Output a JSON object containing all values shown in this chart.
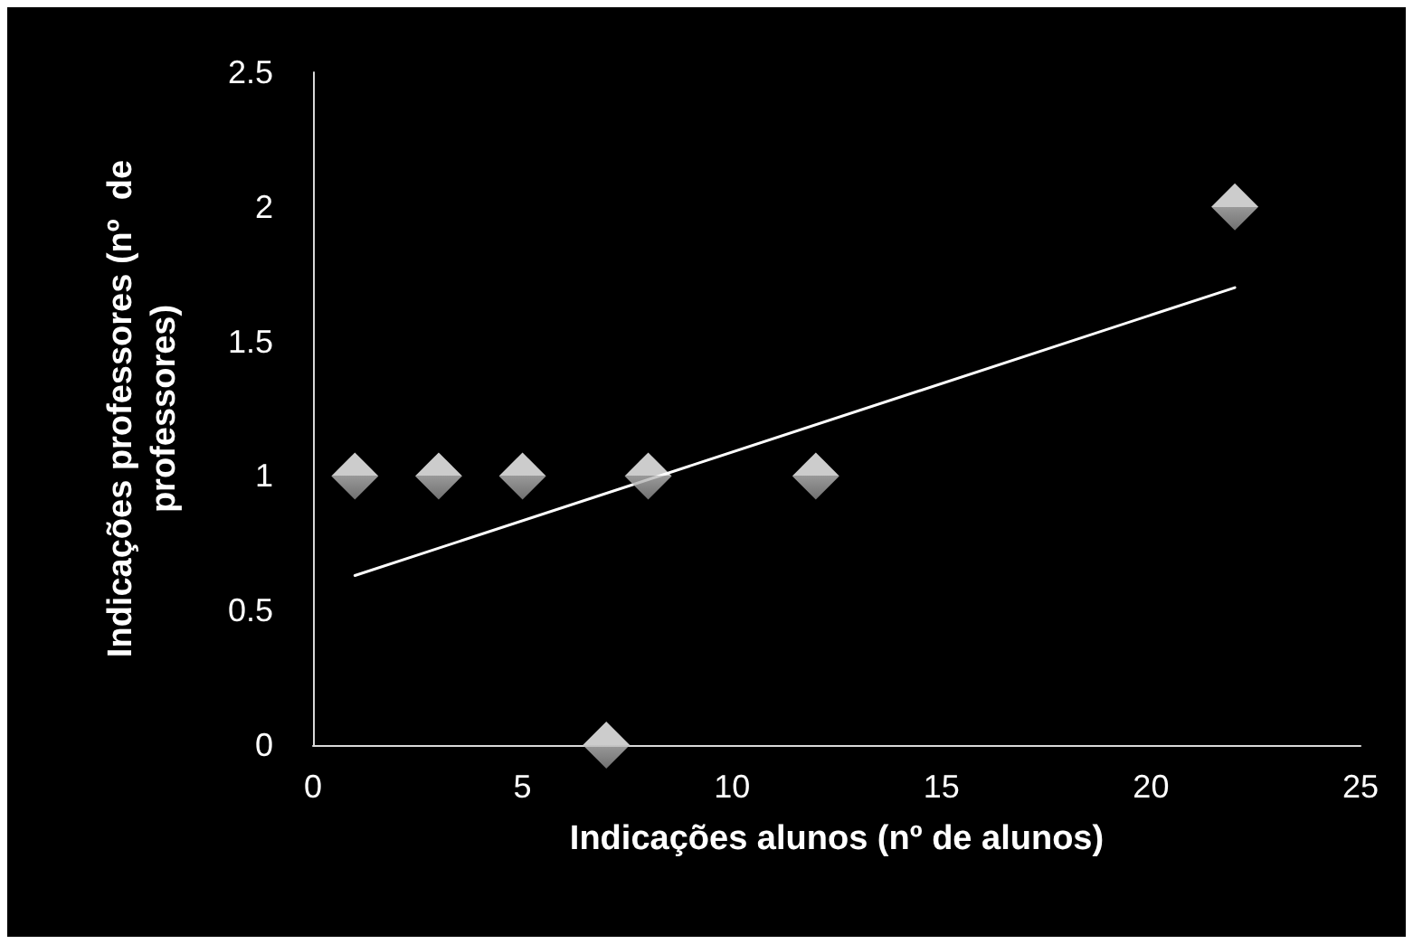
{
  "chart_data": {
    "type": "scatter",
    "xlabel": "Indicações alunos (nº de alunos)",
    "ylabel": "Indicações professores (nº  de professores)",
    "x": [
      1,
      3,
      5,
      7,
      8,
      12,
      22
    ],
    "series": [
      {
        "color": "#ffffff",
        "values": [
          1,
          1,
          1,
          0,
          1,
          1,
          2
        ],
        "marker": "diamond"
      },
      {
        "type": "line",
        "color": "#ffffff",
        "x": [
          1,
          22
        ],
        "values": [
          0.63,
          1.7
        ],
        "marker": "none",
        "line_style": "solid"
      }
    ],
    "xlim": [
      0,
      25
    ],
    "xticks": [
      0,
      5,
      10,
      15,
      20,
      25
    ],
    "ylim": [
      0,
      2.5
    ],
    "yticks": [
      0,
      0.5,
      1,
      1.5,
      2,
      2.5
    ],
    "grid": false
  }
}
